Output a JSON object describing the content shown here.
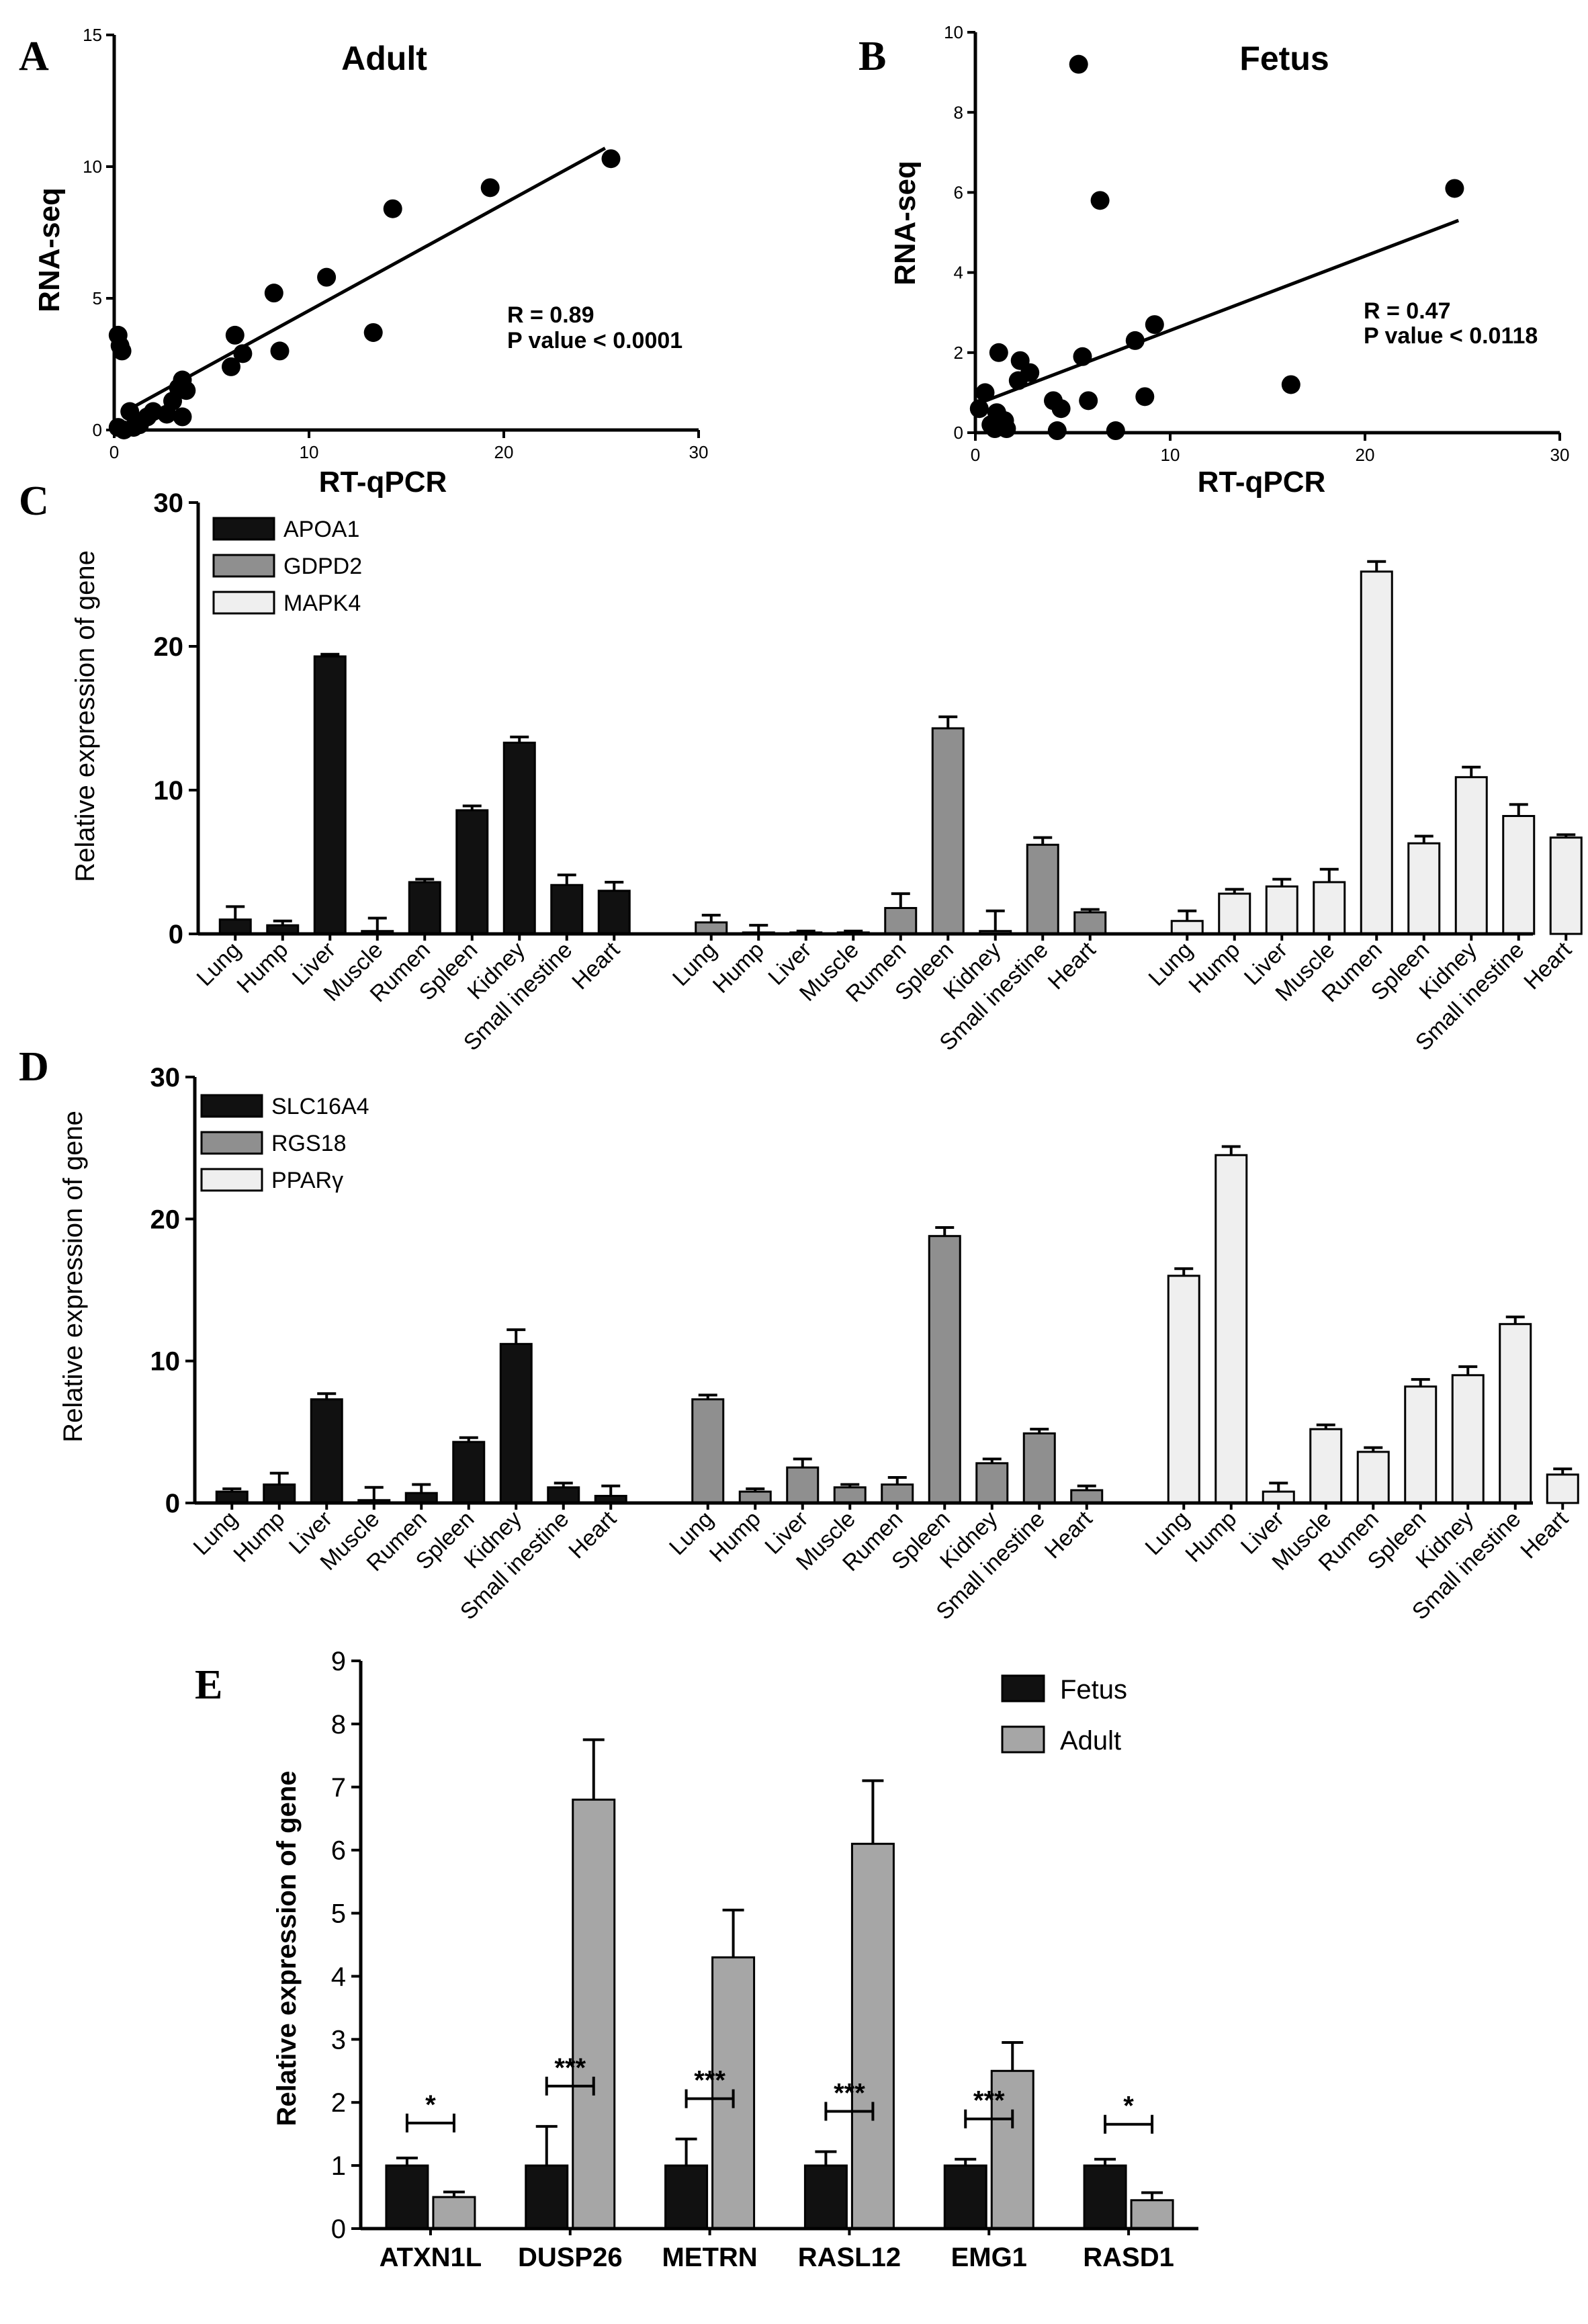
{
  "chart_data": [
    {
      "panel": "A",
      "type": "scatter",
      "title": "Adult",
      "xlabel": "RT-qPCR",
      "ylabel": "RNA-seq",
      "xlim": [
        0,
        30
      ],
      "ylim": [
        0,
        15
      ],
      "xticks": [
        0,
        10,
        20,
        30
      ],
      "yticks": [
        0,
        5,
        10,
        15
      ],
      "points": [
        [
          0.2,
          3.6
        ],
        [
          0.3,
          3.2
        ],
        [
          0.4,
          3.0
        ],
        [
          0.2,
          0.1
        ],
        [
          0.5,
          0.0
        ],
        [
          0.8,
          0.7
        ],
        [
          1.0,
          0.1
        ],
        [
          1.3,
          0.2
        ],
        [
          1.7,
          0.5
        ],
        [
          2.0,
          0.7
        ],
        [
          2.7,
          0.6
        ],
        [
          3.0,
          1.1
        ],
        [
          3.3,
          1.6
        ],
        [
          3.5,
          0.5
        ],
        [
          3.5,
          1.9
        ],
        [
          3.7,
          1.5
        ],
        [
          6.0,
          2.4
        ],
        [
          6.2,
          3.6
        ],
        [
          6.6,
          2.9
        ],
        [
          8.2,
          5.2
        ],
        [
          8.5,
          3.0
        ],
        [
          10.9,
          5.8
        ],
        [
          13.3,
          3.7
        ],
        [
          14.3,
          8.4
        ],
        [
          19.3,
          9.2
        ],
        [
          25.5,
          10.3
        ]
      ],
      "fit": {
        "x0": 0.8,
        "y0": 0.8,
        "x1": 25.2,
        "y1": 10.7
      },
      "annotation": [
        "R = 0.89",
        "P value < 0.0001"
      ]
    },
    {
      "panel": "B",
      "type": "scatter",
      "title": "Fetus",
      "xlabel": "RT-qPCR",
      "ylabel": "RNA-seq",
      "xlim": [
        0,
        30
      ],
      "ylim": [
        0,
        10
      ],
      "xticks": [
        0,
        10,
        20,
        30
      ],
      "yticks": [
        0,
        2,
        4,
        6,
        8,
        10
      ],
      "points": [
        [
          0.2,
          0.6
        ],
        [
          0.5,
          1.0
        ],
        [
          0.8,
          0.2
        ],
        [
          1.0,
          0.1
        ],
        [
          1.1,
          0.5
        ],
        [
          1.2,
          2.0
        ],
        [
          1.5,
          0.3
        ],
        [
          1.6,
          0.1
        ],
        [
          2.2,
          1.3
        ],
        [
          2.3,
          1.8
        ],
        [
          2.8,
          1.5
        ],
        [
          4.0,
          0.8
        ],
        [
          4.2,
          0.05
        ],
        [
          4.4,
          0.6
        ],
        [
          5.3,
          9.2
        ],
        [
          5.5,
          1.9
        ],
        [
          5.8,
          0.8
        ],
        [
          6.4,
          5.8
        ],
        [
          7.2,
          0.05
        ],
        [
          8.2,
          2.3
        ],
        [
          8.7,
          0.9
        ],
        [
          9.2,
          2.7
        ],
        [
          16.2,
          1.2
        ],
        [
          24.6,
          6.1
        ]
      ],
      "fit": {
        "x0": 0.0,
        "y0": 0.7,
        "x1": 24.8,
        "y1": 5.3
      },
      "annotation": [
        "R = 0.47",
        "P value < 0.0118"
      ]
    },
    {
      "panel": "C",
      "type": "bar",
      "ylabel": "Relative expression of gene",
      "ylim": [
        0,
        30
      ],
      "yticks": [
        0,
        10,
        20,
        30
      ],
      "categories": [
        "Lung",
        "Hump",
        "Liver",
        "Muscle",
        "Rumen",
        "Spleen",
        "Kidney",
        "Small inestine",
        "Heart"
      ],
      "series": [
        {
          "name": "APOA1",
          "color": "#111111",
          "values": [
            1.0,
            0.6,
            19.3,
            0.2,
            3.6,
            8.6,
            13.3,
            3.4,
            3.0
          ],
          "errors": [
            0.9,
            0.3,
            0.15,
            0.9,
            0.2,
            0.3,
            0.4,
            0.7,
            0.6
          ]
        },
        {
          "name": "GDPD2",
          "color": "#8f8f8f",
          "values": [
            0.8,
            0.1,
            0.1,
            0.1,
            1.8,
            14.3,
            0.2,
            6.2,
            1.5
          ],
          "errors": [
            0.5,
            0.5,
            0.1,
            0.1,
            1.0,
            0.8,
            1.4,
            0.5,
            0.2
          ]
        },
        {
          "name": "MAPK4",
          "color": "#efefef",
          "values": [
            0.9,
            2.8,
            3.3,
            3.6,
            25.2,
            6.3,
            10.9,
            8.2,
            6.7
          ],
          "errors": [
            0.7,
            0.3,
            0.5,
            0.9,
            0.7,
            0.5,
            0.7,
            0.8,
            0.2
          ]
        }
      ]
    },
    {
      "panel": "D",
      "type": "bar",
      "ylabel": "Relative expression of gene",
      "ylim": [
        0,
        30
      ],
      "yticks": [
        0,
        10,
        20,
        30
      ],
      "categories": [
        "Lung",
        "Hump",
        "Liver",
        "Muscle",
        "Rumen",
        "Spleen",
        "Kidney",
        "Small inestine",
        "Heart"
      ],
      "series": [
        {
          "name": "SLC16A4",
          "color": "#111111",
          "values": [
            0.8,
            1.3,
            7.3,
            0.2,
            0.7,
            4.3,
            11.2,
            1.1,
            0.5
          ],
          "errors": [
            0.2,
            0.8,
            0.4,
            0.9,
            0.6,
            0.3,
            1.0,
            0.3,
            0.7
          ]
        },
        {
          "name": "RGS18",
          "color": "#8f8f8f",
          "values": [
            7.3,
            0.8,
            2.5,
            1.1,
            1.3,
            18.8,
            2.8,
            4.9,
            0.9
          ],
          "errors": [
            0.3,
            0.2,
            0.6,
            0.2,
            0.5,
            0.6,
            0.3,
            0.3,
            0.3
          ]
        },
        {
          "name": "PPARγ",
          "color": "#efefef",
          "values": [
            16.0,
            24.5,
            0.8,
            5.2,
            3.6,
            8.2,
            9.0,
            12.6,
            2.0
          ],
          "errors": [
            0.5,
            0.6,
            0.6,
            0.3,
            0.3,
            0.5,
            0.6,
            0.5,
            0.4
          ]
        }
      ]
    },
    {
      "panel": "E",
      "type": "bar",
      "ylabel": "Relative expression of gene",
      "ylim": [
        0,
        9
      ],
      "yticks": [
        0,
        1,
        2,
        3,
        4,
        5,
        6,
        7,
        8,
        9
      ],
      "categories": [
        "ATXN1L",
        "DUSP26",
        "METRN",
        "RASL12",
        "EMG1",
        "RASD1"
      ],
      "series": [
        {
          "name": "Fetus",
          "color": "#111111",
          "values": [
            1.0,
            1.0,
            1.0,
            1.0,
            1.0,
            1.0
          ],
          "errors": [
            0.12,
            0.62,
            0.42,
            0.22,
            0.1,
            0.1
          ]
        },
        {
          "name": "Adult",
          "color": "#a6a6a6",
          "values": [
            0.5,
            6.8,
            4.3,
            6.1,
            2.5,
            0.45
          ],
          "errors": [
            0.08,
            0.95,
            0.75,
            1.0,
            0.45,
            0.12
          ]
        }
      ],
      "significance": [
        "*",
        "***",
        "***",
        "***",
        "***",
        "*"
      ]
    }
  ]
}
